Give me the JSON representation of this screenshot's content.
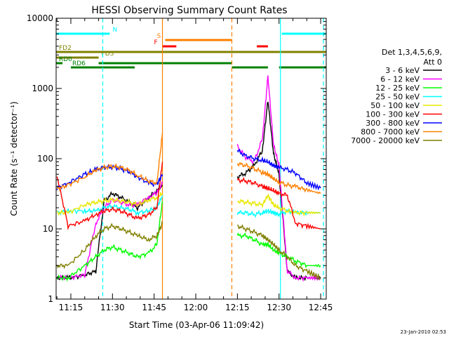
{
  "chart_data": {
    "type": "line",
    "title": "HESSI Observing Summary Count Rates",
    "xlabel": "Start Time (03-Apr-06 11:09:42)",
    "ylabel": "Count Rate (s⁻¹ detector⁻¹)",
    "footer": "23-Jan-2010 02:53",
    "y_scale": "log",
    "xlim": [
      "11:09:42",
      "12:47:00"
    ],
    "ylim": [
      1,
      10000
    ],
    "x_ticks": [
      "11:15",
      "11:30",
      "11:45",
      "12:00",
      "12:15",
      "12:30",
      "12:45"
    ],
    "y_ticks": [
      "1",
      "10",
      "100",
      "1000",
      "10000"
    ],
    "legend": {
      "position": "right",
      "title": [
        "Det 1,3,4,5,6,9,",
        "Att 0"
      ],
      "entries": [
        {
          "label": "3 - 6 keV",
          "color": "#000000"
        },
        {
          "label": "6 - 12 keV",
          "color": "#ff00ff"
        },
        {
          "label": "12 - 25 keV",
          "color": "#00ff00"
        },
        {
          "label": "25 - 50 keV",
          "color": "#00ffff"
        },
        {
          "label": "50 - 100 keV",
          "color": "#e8e800"
        },
        {
          "label": "100 - 300 keV",
          "color": "#ff0000"
        },
        {
          "label": "300 - 800 keV",
          "color": "#0000ff"
        },
        {
          "label": "800 - 7000 keV",
          "color": "#ff8000"
        },
        {
          "label": "7000 - 20000 keV",
          "color": "#808000"
        }
      ]
    },
    "flags": [
      {
        "label": "N",
        "color": "#00ffff",
        "segments": [
          [
            "11:09:42",
            "11:29:00"
          ],
          [
            "12:31:00",
            "12:47:00"
          ]
        ]
      },
      {
        "label": "S",
        "color": "#ff8000",
        "segments": [
          [
            "11:49:00",
            "12:13:00"
          ]
        ]
      },
      {
        "label": "F",
        "color": "#ff0000",
        "segments": [
          [
            "11:48:00",
            "11:53:00"
          ],
          [
            "12:22:00",
            "12:26:00"
          ]
        ]
      },
      {
        "label": "FD2",
        "color": "#808000",
        "segments": [
          [
            "11:09:42",
            "12:47:00"
          ]
        ]
      },
      {
        "label": "FD3",
        "color": "#808000",
        "segments": [
          [
            "11:09:42",
            "11:25:00"
          ]
        ]
      },
      {
        "label": "RD0",
        "color": "#008000",
        "segments": [
          [
            "11:09:42",
            "11:12:00"
          ],
          [
            "11:25:00",
            "12:13:00"
          ]
        ]
      },
      {
        "label": "RD6",
        "color": "#008000",
        "segments": [
          [
            "11:15:00",
            "11:38:00"
          ],
          [
            "12:13:00",
            "12:26:00"
          ],
          [
            "12:30:00",
            "12:47:00"
          ]
        ]
      }
    ],
    "vlines": [
      {
        "time": "11:26:30",
        "color": "#00ffff",
        "style": "dashed"
      },
      {
        "time": "11:48:00",
        "color": "#ff8000",
        "style": "solid"
      },
      {
        "time": "12:13:00",
        "color": "#ff8000",
        "style": "dashed"
      },
      {
        "time": "12:30:30",
        "color": "#00ffff",
        "style": "solid"
      },
      {
        "time": "12:46:00",
        "color": "#00ffff",
        "style": "dashed"
      }
    ],
    "series": [
      {
        "name": "3 - 6 keV",
        "color": "#000000",
        "segments": [
          {
            "times": [
              "11:10",
              "11:14",
              "11:20",
              "11:24",
              "11:27",
              "11:30",
              "11:33",
              "11:36",
              "11:39",
              "11:43",
              "11:46",
              "11:48"
            ],
            "values": [
              2,
              2,
              2.2,
              2.5,
              25,
              32,
              28,
              24,
              20,
              28,
              35,
              42
            ]
          },
          {
            "times": [
              "12:15",
              "12:18",
              "12:21",
              "12:24",
              "12:26",
              "12:28",
              "12:30",
              "12:33",
              "12:36",
              "12:40",
              "12:45"
            ],
            "values": [
              55,
              62,
              80,
              130,
              680,
              120,
              60,
              2.5,
              2,
              2,
              2
            ]
          }
        ]
      },
      {
        "name": "6 - 12 keV",
        "color": "#ff00ff",
        "segments": [
          {
            "times": [
              "11:10",
              "11:14",
              "11:20",
              "11:24",
              "11:27",
              "11:30",
              "11:33",
              "11:36",
              "11:39",
              "11:43",
              "11:46",
              "11:48"
            ],
            "values": [
              2,
              2,
              2.2,
              12,
              20,
              26,
              24,
              22,
              22,
              28,
              33,
              45
            ]
          },
          {
            "times": [
              "12:15",
              "12:18",
              "12:21",
              "12:24",
              "12:26",
              "12:28",
              "12:30",
              "12:33",
              "12:36",
              "12:40",
              "12:45"
            ],
            "values": [
              150,
              105,
              90,
              190,
              1500,
              160,
              80,
              2.5,
              2,
              2,
              2
            ]
          }
        ]
      },
      {
        "name": "12 - 25 keV",
        "color": "#00ff00",
        "segments": [
          {
            "times": [
              "11:10",
              "11:14",
              "11:20",
              "11:24",
              "11:27",
              "11:30",
              "11:33",
              "11:36",
              "11:39",
              "11:43",
              "11:46",
              "11:48"
            ],
            "values": [
              2,
              2,
              3,
              4,
              5,
              5.5,
              5,
              4.5,
              4,
              4.5,
              6,
              25
            ]
          },
          {
            "times": [
              "12:15",
              "12:18",
              "12:21",
              "12:24",
              "12:26",
              "12:28",
              "12:30",
              "12:33",
              "12:36",
              "12:40",
              "12:45"
            ],
            "values": [
              8,
              8,
              7,
              6,
              6,
              5,
              4.5,
              4,
              3.5,
              3,
              3
            ]
          }
        ]
      },
      {
        "name": "25 - 50 keV",
        "color": "#00ffff",
        "segments": [
          {
            "times": [
              "11:10",
              "11:14",
              "11:20",
              "11:24",
              "11:27",
              "11:30",
              "11:33",
              "11:36",
              "11:39",
              "11:43",
              "11:46",
              "11:48"
            ],
            "values": [
              17,
              18,
              18,
              18,
              20,
              21,
              20,
              19,
              17,
              18,
              20,
              30
            ]
          },
          {
            "times": [
              "12:15",
              "12:18",
              "12:21",
              "12:24",
              "12:26",
              "12:28",
              "12:30",
              "12:33",
              "12:36",
              "12:40",
              "12:45"
            ],
            "values": [
              17,
              17,
              16,
              17,
              18,
              17,
              16,
              18,
              17,
              17,
              17
            ]
          }
        ]
      },
      {
        "name": "50 - 100 keV",
        "color": "#e8e800",
        "segments": [
          {
            "times": [
              "11:10",
              "11:14",
              "11:20",
              "11:24",
              "11:27",
              "11:30",
              "11:33",
              "11:36",
              "11:39",
              "11:43",
              "11:46",
              "11:48"
            ],
            "values": [
              17,
              17,
              22,
              24,
              25,
              26,
              25,
              24,
              22,
              26,
              28,
              32
            ]
          },
          {
            "times": [
              "12:15",
              "12:18",
              "12:21",
              "12:24",
              "12:26",
              "12:28",
              "12:30",
              "12:33",
              "12:36",
              "12:40",
              "12:45"
            ],
            "values": [
              25,
              24,
              23,
              22,
              30,
              22,
              20,
              18,
              17,
              17,
              17
            ]
          }
        ]
      },
      {
        "name": "100 - 300 keV",
        "color": "#ff0000",
        "segments": [
          {
            "times": [
              "11:10",
              "11:14",
              "11:20",
              "11:24",
              "11:27",
              "11:30",
              "11:33",
              "11:36",
              "11:39",
              "11:43",
              "11:46",
              "11:48"
            ],
            "values": [
              58,
              11,
              13,
              16,
              18,
              19,
              18,
              16,
              14,
              16,
              20,
              90
            ]
          },
          {
            "times": [
              "12:15",
              "12:18",
              "12:21",
              "12:24",
              "12:26",
              "12:28",
              "12:30",
              "12:33",
              "12:36",
              "12:40",
              "12:45"
            ],
            "values": [
              50,
              48,
              45,
              40,
              38,
              35,
              32,
              30,
              12,
              11,
              10
            ]
          }
        ]
      },
      {
        "name": "300 - 800 keV",
        "color": "#0000ff",
        "segments": [
          {
            "times": [
              "11:10",
              "11:14",
              "11:20",
              "11:24",
              "11:27",
              "11:30",
              "11:33",
              "11:36",
              "11:39",
              "11:43",
              "11:46",
              "11:48"
            ],
            "values": [
              38,
              45,
              60,
              70,
              75,
              76,
              72,
              65,
              55,
              45,
              43,
              60
            ]
          },
          {
            "times": [
              "12:15",
              "12:18",
              "12:21",
              "12:24",
              "12:26",
              "12:28",
              "12:30",
              "12:33",
              "12:36",
              "12:40",
              "12:45"
            ],
            "values": [
              130,
              110,
              100,
              95,
              90,
              80,
              75,
              70,
              62,
              45,
              38
            ]
          }
        ]
      },
      {
        "name": "800 - 7000 keV",
        "color": "#ff8000",
        "segments": [
          {
            "times": [
              "11:10",
              "11:14",
              "11:20",
              "11:24",
              "11:27",
              "11:30",
              "11:33",
              "11:36",
              "11:39",
              "11:43",
              "11:46",
              "11:48"
            ],
            "values": [
              37,
              42,
              55,
              68,
              75,
              78,
              75,
              68,
              58,
              48,
              45,
              230
            ]
          },
          {
            "times": [
              "12:15",
              "12:18",
              "12:21",
              "12:24",
              "12:26",
              "12:28",
              "12:30",
              "12:33",
              "12:36",
              "12:40",
              "12:45"
            ],
            "values": [
              85,
              80,
              72,
              64,
              60,
              52,
              46,
              42,
              40,
              36,
              32
            ]
          }
        ]
      },
      {
        "name": "7000 - 20000 keV",
        "color": "#808000",
        "segments": [
          {
            "times": [
              "11:10",
              "11:14",
              "11:20",
              "11:24",
              "11:27",
              "11:30",
              "11:33",
              "11:36",
              "11:39",
              "11:43",
              "11:46",
              "11:48"
            ],
            "values": [
              3,
              3,
              5,
              8,
              10,
              11,
              10,
              9,
              8,
              7,
              8,
              12
            ]
          },
          {
            "times": [
              "12:15",
              "12:18",
              "12:21",
              "12:24",
              "12:26",
              "12:28",
              "12:30",
              "12:33",
              "12:36",
              "12:40",
              "12:45"
            ],
            "values": [
              11,
              10,
              9,
              8,
              7,
              6,
              5,
              4,
              3,
              2.5,
              2
            ]
          }
        ]
      }
    ]
  }
}
